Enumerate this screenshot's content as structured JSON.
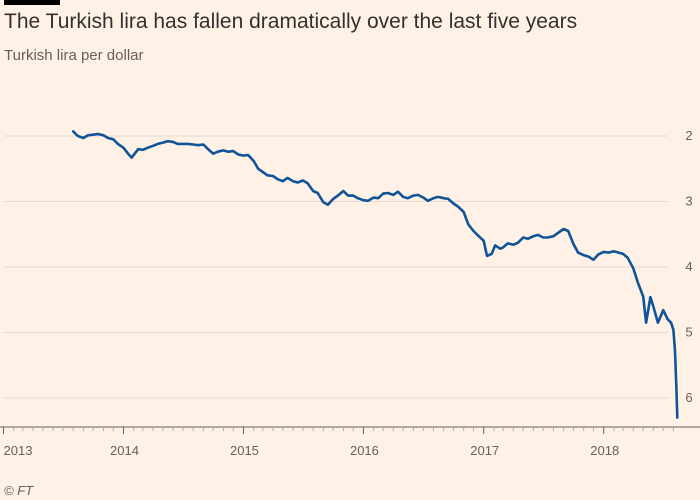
{
  "header": {
    "title": "The Turkish lira has fallen dramatically over the last five years",
    "subtitle": "Turkish lira per dollar"
  },
  "footer": {
    "source": "© FT"
  },
  "colors": {
    "background": "#fff1e5",
    "line": "#0f5499",
    "grid": "#e6d9ce",
    "text": "#66605c",
    "title": "#33302e",
    "topbar": "#000000"
  },
  "chart_data": {
    "type": "line",
    "title": "The Turkish lira has fallen dramatically over the last five years",
    "subtitle": "Turkish lira per dollar",
    "xlabel": "",
    "ylabel": "",
    "y_inverted": true,
    "y_axis_position": "right",
    "ylim": [
      1.9,
      6.3
    ],
    "y_ticks": [
      2,
      3,
      4,
      5,
      6
    ],
    "x_ticks": [
      "2013",
      "2014",
      "2015",
      "2016",
      "2017",
      "2018"
    ],
    "x_tick_dates": [
      "2013-01-01",
      "2014-01-01",
      "2015-01-01",
      "2016-01-01",
      "2017-01-01",
      "2018-01-01"
    ],
    "grid": true,
    "series": [
      {
        "color": "#0f5499",
        "x": [
          "2013-08-01",
          "2013-08-15",
          "2013-09-01",
          "2013-09-15",
          "2013-10-01",
          "2013-10-15",
          "2013-11-01",
          "2013-11-15",
          "2013-12-01",
          "2013-12-15",
          "2014-01-01",
          "2014-01-15",
          "2014-01-26",
          "2014-02-15",
          "2014-03-01",
          "2014-03-15",
          "2014-04-01",
          "2014-04-15",
          "2014-05-01",
          "2014-05-15",
          "2014-06-01",
          "2014-06-15",
          "2014-07-01",
          "2014-07-15",
          "2014-08-01",
          "2014-08-15",
          "2014-09-01",
          "2014-09-15",
          "2014-10-01",
          "2014-10-15",
          "2014-11-01",
          "2014-11-15",
          "2014-12-01",
          "2014-12-15",
          "2015-01-01",
          "2015-01-15",
          "2015-02-01",
          "2015-02-15",
          "2015-03-01",
          "2015-03-15",
          "2015-04-01",
          "2015-04-15",
          "2015-05-01",
          "2015-05-15",
          "2015-06-01",
          "2015-06-15",
          "2015-07-01",
          "2015-07-15",
          "2015-08-01",
          "2015-08-15",
          "2015-09-01",
          "2015-09-15",
          "2015-10-01",
          "2015-10-15",
          "2015-11-01",
          "2015-11-15",
          "2015-12-01",
          "2015-12-15",
          "2016-01-01",
          "2016-01-15",
          "2016-02-01",
          "2016-02-15",
          "2016-03-01",
          "2016-03-15",
          "2016-04-01",
          "2016-04-15",
          "2016-05-01",
          "2016-05-15",
          "2016-06-01",
          "2016-06-15",
          "2016-07-01",
          "2016-07-15",
          "2016-08-01",
          "2016-08-15",
          "2016-09-01",
          "2016-09-15",
          "2016-10-01",
          "2016-10-15",
          "2016-11-01",
          "2016-11-15",
          "2016-12-01",
          "2016-12-15",
          "2017-01-01",
          "2017-01-11",
          "2017-01-25",
          "2017-02-05",
          "2017-02-20",
          "2017-03-01",
          "2017-03-15",
          "2017-04-01",
          "2017-04-15",
          "2017-05-01",
          "2017-05-15",
          "2017-06-01",
          "2017-06-15",
          "2017-07-01",
          "2017-07-15",
          "2017-08-01",
          "2017-08-15",
          "2017-09-01",
          "2017-09-15",
          "2017-10-01",
          "2017-10-15",
          "2017-11-01",
          "2017-11-15",
          "2017-12-01",
          "2017-12-15",
          "2018-01-01",
          "2018-01-15",
          "2018-02-01",
          "2018-02-15",
          "2018-03-01",
          "2018-03-15",
          "2018-04-01",
          "2018-04-15",
          "2018-05-01",
          "2018-05-10",
          "2018-05-23",
          "2018-06-01",
          "2018-06-15",
          "2018-07-01",
          "2018-07-15",
          "2018-07-25",
          "2018-08-01",
          "2018-08-06",
          "2018-08-10",
          "2018-08-13"
        ],
        "values": [
          1.93,
          2.0,
          2.03,
          1.99,
          1.98,
          1.97,
          1.99,
          2.03,
          2.05,
          2.12,
          2.18,
          2.27,
          2.33,
          2.2,
          2.21,
          2.18,
          2.15,
          2.12,
          2.1,
          2.08,
          2.09,
          2.12,
          2.12,
          2.12,
          2.13,
          2.14,
          2.13,
          2.2,
          2.27,
          2.24,
          2.22,
          2.24,
          2.23,
          2.28,
          2.3,
          2.29,
          2.38,
          2.5,
          2.55,
          2.6,
          2.61,
          2.66,
          2.69,
          2.64,
          2.69,
          2.71,
          2.68,
          2.72,
          2.84,
          2.87,
          3.01,
          3.05,
          2.96,
          2.91,
          2.84,
          2.91,
          2.91,
          2.95,
          2.98,
          2.99,
          2.94,
          2.95,
          2.88,
          2.87,
          2.9,
          2.85,
          2.93,
          2.95,
          2.91,
          2.9,
          2.94,
          2.99,
          2.95,
          2.93,
          2.95,
          2.96,
          3.03,
          3.08,
          3.16,
          3.35,
          3.45,
          3.52,
          3.6,
          3.83,
          3.8,
          3.67,
          3.72,
          3.7,
          3.64,
          3.66,
          3.63,
          3.55,
          3.57,
          3.53,
          3.51,
          3.55,
          3.55,
          3.53,
          3.48,
          3.42,
          3.45,
          3.65,
          3.78,
          3.82,
          3.84,
          3.89,
          3.81,
          3.77,
          3.78,
          3.76,
          3.78,
          3.8,
          3.86,
          4.02,
          4.24,
          4.45,
          4.85,
          4.46,
          4.6,
          4.85,
          4.66,
          4.8,
          4.85,
          4.96,
          5.28,
          5.85,
          6.3
        ]
      }
    ]
  }
}
